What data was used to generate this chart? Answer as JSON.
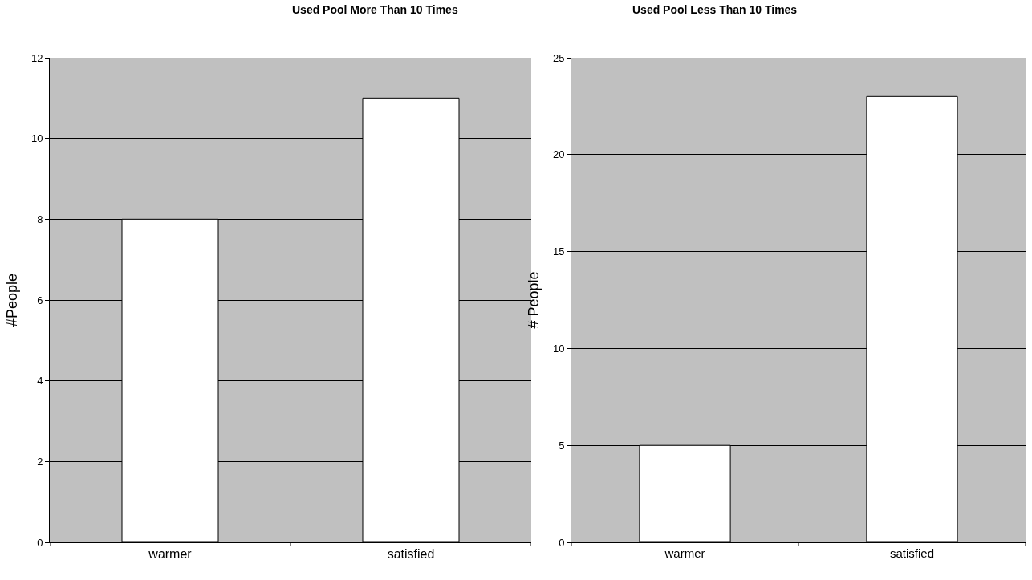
{
  "chart_data": [
    {
      "type": "bar",
      "title": "Used Pool More Than 10 Times",
      "ylabel": "#People",
      "categories": [
        "warmer",
        "satisfied"
      ],
      "values": [
        8,
        11
      ],
      "color": "#ffffff",
      "ylim": [
        0,
        12
      ],
      "yticks": [
        0,
        2,
        4,
        6,
        8,
        10,
        12
      ],
      "grid": "y"
    },
    {
      "type": "bar",
      "title": "Used Pool Less Than 10 Times",
      "ylabel": "# People",
      "categories": [
        "warmer",
        "satisfied"
      ],
      "values": [
        5,
        23
      ],
      "color": "#ffffff",
      "ylim": [
        0,
        25
      ],
      "yticks": [
        0,
        5,
        10,
        15,
        20,
        25
      ],
      "grid": "y"
    }
  ]
}
